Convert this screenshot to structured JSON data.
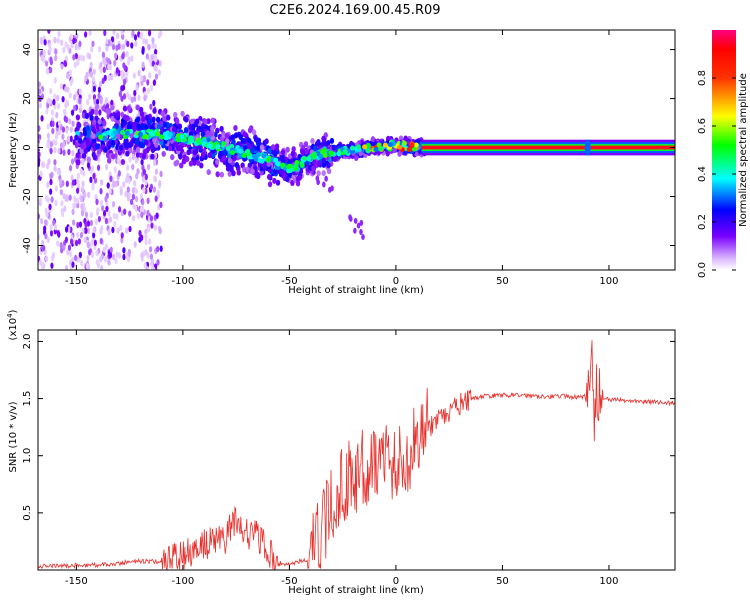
{
  "title": "C2E6.2024.169.00.45.R09",
  "colors": {
    "snr_line": "#e8312d",
    "axis": "#000000",
    "background": "#ffffff"
  },
  "chart_data": [
    {
      "type": "heatmap",
      "xlabel": "Height of straight line (km)",
      "ylabel": "Frequency (Hz)",
      "xlim": [
        -168,
        131
      ],
      "ylim": [
        -50,
        48
      ],
      "x_ticks": [
        -150,
        -100,
        -50,
        0,
        50,
        100
      ],
      "y_ticks": [
        -40,
        -20,
        0,
        20,
        40
      ],
      "colorbar": {
        "label": "Normalized spectral amplitude",
        "range": [
          0.0,
          1.0
        ],
        "ticks": [
          "0.0",
          "0.2",
          "0.4",
          "0.6",
          "0.8"
        ],
        "colormap": "rainbow (white-violet-blue-cyan-green-yellow-red-magenta)"
      },
      "ridge": {
        "description_points_x": [
          -140,
          -120,
          -100,
          -90,
          -80,
          -70,
          -60,
          -50,
          -45,
          -40,
          -30,
          -20,
          -10,
          0,
          10,
          50,
          90,
          131
        ],
        "description_points_y": [
          5,
          6,
          4,
          2,
          0,
          -2,
          -5,
          -9,
          -7,
          -4,
          -2,
          -1,
          0,
          1,
          0,
          0,
          0,
          0
        ]
      },
      "noise_region_x": [
        -168,
        -110
      ],
      "scatter_tail": {
        "x": [
          -38,
          -15
        ],
        "y": [
          -12,
          -36
        ]
      }
    },
    {
      "type": "line",
      "xlabel": "Height of straight line (km)",
      "ylabel": "SNR (10 * v/v)",
      "y_multiplier": "(x10",
      "y_multiplier_exp": "4",
      "xlim": [
        -168,
        131
      ],
      "ylim": [
        0,
        2.1
      ],
      "x_ticks": [
        -150,
        -100,
        -50,
        0,
        50,
        100
      ],
      "y_ticks": [
        0.5,
        1.0,
        1.5,
        2.0
      ],
      "series": [
        {
          "x": [
            -168,
            -130,
            -125,
            -110,
            -100,
            -90,
            -80,
            -75,
            -70,
            -65,
            -60,
            -55,
            -50,
            -40,
            -35,
            -30,
            -25,
            -20,
            -15,
            -10,
            -5,
            0,
            5,
            10,
            15,
            20,
            30,
            40,
            50,
            60,
            70,
            80,
            85,
            90,
            92,
            93,
            94,
            96,
            100,
            110,
            120,
            131
          ],
          "y": [
            0.03,
            0.05,
            0.08,
            0.07,
            0.12,
            0.22,
            0.28,
            0.45,
            0.32,
            0.3,
            0.15,
            0.06,
            0.05,
            0.1,
            0.35,
            0.55,
            0.75,
            0.82,
            0.9,
            0.95,
            1.0,
            0.92,
            0.95,
            1.2,
            1.25,
            1.3,
            1.45,
            1.52,
            1.53,
            1.53,
            1.52,
            1.52,
            1.51,
            1.52,
            1.85,
            1.2,
            1.6,
            1.5,
            1.49,
            1.48,
            1.47,
            1.46
          ]
        }
      ]
    }
  ]
}
